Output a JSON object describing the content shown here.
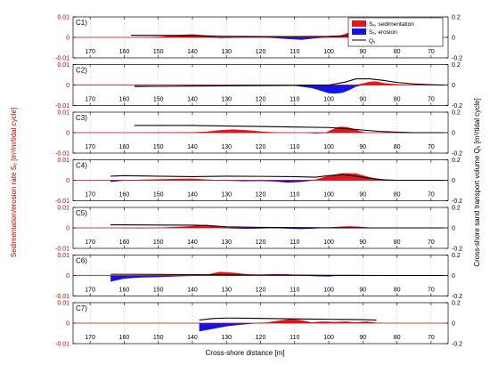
{
  "chart_data": {
    "type": "area",
    "xlabel": "Cross-shore distance [m]",
    "ylabel_left": "Sedimentation/erosion rate Sₑ [m³/m/tidal cycle]",
    "ylabel_right": "Cross-shore sand transport volume Qₓ [m³/tidal cycle]",
    "x_range": [
      175,
      65
    ],
    "x_ticks": [
      170,
      160,
      150,
      140,
      130,
      120,
      110,
      100,
      90,
      80,
      70
    ],
    "x_tick_labels": [
      "170",
      "160",
      "150",
      "140",
      "130",
      "120",
      "110",
      "100",
      "90",
      "80",
      "70"
    ],
    "ylim_left": [
      -0.01,
      0.01
    ],
    "y_ticks_left": [
      -0.01,
      0,
      0.01
    ],
    "y_tick_labels_left": [
      "-0.01",
      "0",
      "0.01"
    ],
    "ylim_right": [
      -0.2,
      0.2
    ],
    "y_ticks_right": [
      -0.2,
      0,
      0.2
    ],
    "y_tick_labels_right": [
      "-0.2",
      "0",
      "0.2"
    ],
    "grid": "vertical dotted lines",
    "legend": {
      "placement": "top-right of panel C1",
      "entries": [
        {
          "label": "Sₑ, sedimentation",
          "color": "#e8141c"
        },
        {
          "label": "Sₑ, erosion",
          "color": "#1414e6"
        },
        {
          "label": "Qₓ",
          "color": "#000000"
        }
      ]
    },
    "colors": {
      "sedimentation": "#e8141c",
      "erosion": "#1414e6",
      "qx": "#000000",
      "zero_line": "#c00000"
    },
    "panels": [
      {
        "label": "C1)",
        "se": {
          "x": [
            158,
            150,
            144,
            140,
            136,
            132,
            128,
            124,
            120,
            116,
            112,
            108,
            104,
            100,
            96,
            93,
            90,
            88,
            86,
            84,
            82,
            78,
            74,
            70,
            66
          ],
          "y": [
            0.0,
            0.0003,
            0.0012,
            0.0015,
            0.0009,
            -0.0004,
            -0.0002,
            0.0003,
            0.0001,
            -0.0003,
            -0.0008,
            -0.0012,
            -0.0005,
            0.0002,
            0.0012,
            0.0032,
            0.0058,
            0.0035,
            0.0009,
            0.0,
            -0.0004,
            -0.0003,
            0.0002,
            0.0,
            0.0
          ]
        },
        "qx": {
          "x": [
            158,
            150,
            140,
            130,
            120,
            110,
            100,
            95,
            90,
            87,
            84,
            82
          ],
          "y": [
            0.02,
            0.02,
            0.018,
            0.01,
            0.008,
            0.008,
            0.01,
            0.015,
            0.025,
            0.05,
            0.06,
            0.02
          ]
        }
      },
      {
        "label": "C2)",
        "se": {
          "x": [
            157,
            150,
            145,
            140,
            135,
            130,
            125,
            120,
            115,
            110,
            105,
            102,
            100,
            98,
            96,
            94,
            92,
            90,
            88,
            86,
            84,
            80,
            75,
            70,
            66
          ],
          "y": [
            -0.0003,
            -0.0002,
            -0.0001,
            -0.0002,
            -0.0001,
            0.0,
            -0.0002,
            -0.0003,
            -0.0004,
            -0.0004,
            -0.0015,
            -0.003,
            -0.004,
            -0.0042,
            -0.0038,
            -0.0025,
            -0.0008,
            0.0008,
            0.0016,
            0.0018,
            0.001,
            0.0004,
            0.0001,
            0.0,
            0.0
          ]
        },
        "qx": {
          "x": [
            157,
            150,
            140,
            130,
            120,
            110,
            105,
            100,
            95,
            92,
            88,
            84,
            80,
            75,
            70,
            66
          ],
          "y": [
            -0.015,
            -0.013,
            -0.01,
            -0.008,
            -0.006,
            -0.004,
            -0.002,
            0.0,
            0.03,
            0.06,
            0.06,
            0.045,
            0.025,
            0.01,
            0.003,
            0.0
          ]
        }
      },
      {
        "label": "C3)",
        "se": {
          "x": [
            157,
            150,
            140,
            136,
            132,
            128,
            124,
            120,
            116,
            112,
            108,
            104,
            101,
            99,
            97,
            95,
            93,
            91,
            89,
            87,
            85,
            80,
            75,
            70,
            66
          ],
          "y": [
            0.0,
            0.0001,
            0.0002,
            0.0005,
            0.0012,
            0.0016,
            0.0012,
            0.0006,
            0.0002,
            0.0001,
            0.0,
            -0.0004,
            -0.0002,
            0.0015,
            0.0028,
            0.0028,
            0.002,
            0.0008,
            0.0,
            -0.0001,
            0.0001,
            0.0,
            0.0,
            0.0,
            0.0
          ]
        },
        "qx": {
          "x": [
            157,
            150,
            140,
            130,
            120,
            110,
            100,
            95,
            90,
            85,
            80,
            75,
            70,
            66
          ],
          "y": [
            0.07,
            0.07,
            0.07,
            0.065,
            0.06,
            0.055,
            0.05,
            0.04,
            0.025,
            0.012,
            0.005,
            0.0,
            0.0,
            0.0
          ]
        }
      },
      {
        "label": "C4)",
        "se": {
          "x": [
            164,
            160,
            155,
            150,
            145,
            140,
            135,
            130,
            125,
            120,
            116,
            112,
            108,
            104,
            100,
            96,
            92,
            88,
            84,
            80,
            75,
            70,
            66
          ],
          "y": [
            -0.0008,
            -0.0002,
            0.0003,
            0.0005,
            0.0007,
            0.0008,
            0.0003,
            -0.0002,
            -0.0005,
            -0.0004,
            -0.0006,
            -0.0012,
            -0.0008,
            0.0003,
            0.0022,
            0.0035,
            0.0033,
            0.0015,
            -0.0001,
            -0.0002,
            0.0,
            0.0,
            0.0
          ]
        },
        "qx": {
          "x": [
            164,
            160,
            150,
            140,
            130,
            120,
            110,
            104,
            100,
            96,
            92,
            88,
            84,
            80,
            75,
            70,
            66
          ],
          "y": [
            0.04,
            0.045,
            0.04,
            0.035,
            0.04,
            0.038,
            0.035,
            0.03,
            0.045,
            0.055,
            0.04,
            0.02,
            0.005,
            0.0,
            0.0,
            0.0,
            0.0
          ]
        }
      },
      {
        "label": "C5)",
        "se": {
          "x": [
            164,
            160,
            155,
            150,
            145,
            140,
            136,
            132,
            128,
            124,
            120,
            116,
            112,
            108,
            104,
            100,
            97,
            94,
            91,
            88,
            84,
            80,
            75,
            70,
            66
          ],
          "y": [
            0.0,
            -0.0001,
            -0.0002,
            0.0001,
            0.0005,
            0.0009,
            0.0015,
            0.0005,
            -0.0003,
            -0.0005,
            -0.0003,
            -0.0001,
            -0.0004,
            -0.0006,
            -0.0003,
            0.0002,
            0.0006,
            0.0008,
            0.0006,
            0.0002,
            0.0,
            0.0,
            0.0,
            0.0,
            0.0
          ]
        },
        "qx": {
          "x": [
            164,
            160,
            150,
            140,
            135,
            130,
            120,
            110,
            100,
            90,
            80,
            75,
            70,
            66
          ],
          "y": [
            0.03,
            0.03,
            0.028,
            0.027,
            0.022,
            0.01,
            0.005,
            0.003,
            0.001,
            0.0,
            0.0,
            0.0,
            0.0,
            0.0
          ]
        }
      },
      {
        "label": "C6)",
        "se": {
          "x": [
            164,
            160,
            155,
            150,
            145,
            140,
            136,
            132,
            128,
            124,
            120,
            116,
            112,
            108,
            104,
            100,
            96,
            92,
            88,
            84,
            80,
            75,
            70,
            66
          ],
          "y": [
            -0.003,
            -0.0015,
            -0.001,
            -0.0008,
            -0.0005,
            -0.0002,
            0.0004,
            0.0018,
            0.0014,
            0.0006,
            0.0004,
            0.0007,
            0.0006,
            0.0002,
            -0.0004,
            -0.0005,
            0.0002,
            0.0003,
            0.0001,
            0.0,
            -0.0001,
            0.0,
            0.0,
            0.0
          ]
        },
        "qx": {
          "x": [
            164,
            160,
            150,
            140,
            130,
            120,
            110,
            100,
            90,
            80,
            70,
            66
          ],
          "y": [
            0.012,
            0.012,
            0.01,
            0.008,
            0.006,
            0.005,
            0.004,
            0.002,
            0.001,
            0.0,
            0.0,
            0.0
          ]
        }
      },
      {
        "label": "C7)",
        "se": {
          "x": [
            138,
            134,
            130,
            126,
            122,
            118,
            114,
            111,
            108,
            105,
            102,
            98,
            95,
            92,
            89,
            86,
            83,
            80,
            75,
            70,
            66
          ],
          "y": [
            -0.004,
            -0.0028,
            -0.0016,
            -0.0008,
            -0.0002,
            0.0004,
            0.0014,
            0.0021,
            0.0014,
            0.0004,
            0.0008,
            0.0006,
            0.0008,
            0.0004,
            0.0008,
            0.0002,
            0.0,
            0.0,
            0.0,
            0.0,
            0.0
          ]
        },
        "qx": {
          "x": [
            138,
            134,
            130,
            125,
            120,
            115,
            110,
            105,
            100,
            95,
            90,
            86
          ],
          "y": [
            0.03,
            0.045,
            0.05,
            0.048,
            0.046,
            0.044,
            0.042,
            0.04,
            0.038,
            0.036,
            0.034,
            0.03
          ]
        }
      }
    ]
  }
}
